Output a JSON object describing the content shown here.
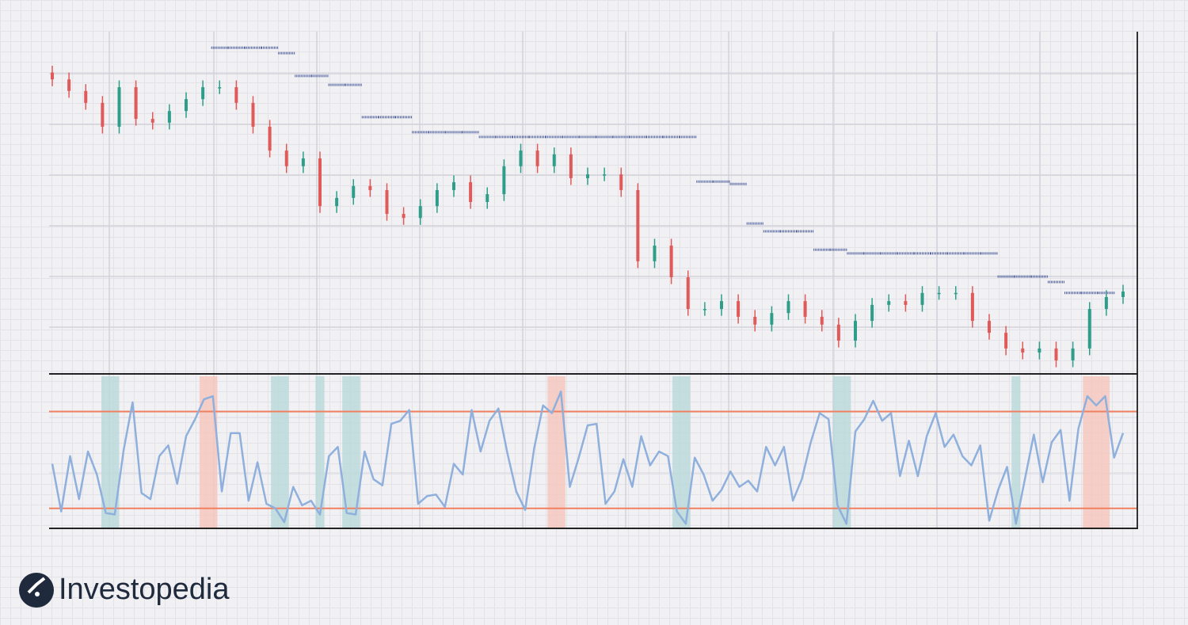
{
  "chart_data": [
    {
      "type": "candlestick",
      "up_color": "#2e9e8a",
      "down_color": "#e05a5a",
      "stop_color": "#4a5a9a",
      "ylim": [
        0,
        100
      ],
      "open": [
        88.0,
        86.0,
        82.6,
        79.1,
        72.1,
        83.7,
        74.4,
        73.3,
        76.7,
        80.2,
        83.7,
        83.7,
        79.1,
        72.1,
        65.1,
        60.5,
        62.8,
        48.8,
        51.2,
        54.7,
        53.5,
        46.5,
        45.3,
        48.8,
        53.5,
        55.8,
        50.0,
        52.3,
        60.5,
        65.1,
        60.5,
        64.0,
        57.0,
        58.1,
        58.1,
        53.5,
        32.6,
        37.2,
        27.9,
        18.6,
        18.6,
        20.9,
        16.3,
        14.0,
        17.4,
        20.9,
        16.3,
        14.0,
        9.3,
        15.1,
        19.8,
        20.9,
        19.8,
        23.3,
        23.3,
        23.3,
        15.1,
        11.6,
        7.0,
        5.8,
        7.0,
        3.5,
        7.0,
        18.6,
        22.1
      ],
      "high": [
        90.0,
        88.0,
        84.6,
        81.1,
        85.7,
        85.7,
        76.4,
        78.7,
        82.2,
        85.7,
        85.7,
        85.7,
        81.1,
        74.1,
        67.1,
        64.8,
        64.8,
        53.2,
        56.7,
        56.7,
        55.5,
        48.5,
        50.8,
        55.5,
        57.8,
        57.8,
        54.3,
        62.5,
        67.1,
        67.1,
        66.0,
        66.0,
        60.1,
        60.1,
        60.1,
        55.5,
        39.2,
        39.2,
        29.9,
        20.6,
        22.9,
        22.9,
        18.3,
        19.4,
        22.9,
        22.9,
        18.3,
        16.0,
        17.1,
        21.8,
        22.9,
        22.9,
        25.3,
        25.3,
        25.3,
        25.3,
        17.1,
        13.6,
        9.0,
        9.0,
        9.0,
        9.0,
        20.6,
        24.1,
        25.7
      ],
      "low": [
        84.0,
        80.6,
        77.1,
        70.1,
        70.1,
        72.4,
        71.3,
        71.3,
        74.7,
        78.2,
        81.7,
        77.1,
        70.1,
        63.1,
        58.5,
        58.5,
        46.8,
        46.8,
        49.2,
        51.5,
        44.5,
        43.3,
        43.3,
        46.8,
        51.5,
        48.0,
        48.0,
        50.3,
        58.5,
        58.5,
        58.5,
        55.0,
        55.0,
        56.1,
        51.5,
        30.6,
        30.6,
        25.9,
        16.6,
        16.6,
        16.6,
        14.3,
        12.0,
        12.0,
        15.4,
        14.3,
        12.0,
        7.3,
        7.3,
        13.1,
        17.8,
        17.8,
        17.8,
        21.3,
        21.3,
        13.1,
        9.6,
        5.0,
        3.8,
        3.8,
        1.5,
        1.5,
        5.0,
        16.6,
        20.1
      ],
      "close": [
        86.0,
        82.6,
        79.1,
        72.1,
        83.7,
        74.4,
        73.3,
        76.7,
        80.2,
        83.7,
        83.7,
        79.1,
        72.1,
        65.1,
        60.5,
        62.8,
        48.8,
        51.2,
        54.7,
        53.5,
        46.5,
        45.3,
        48.8,
        53.5,
        55.8,
        50.0,
        52.3,
        60.5,
        65.1,
        60.5,
        64.0,
        57.0,
        58.1,
        58.1,
        53.5,
        32.6,
        37.2,
        27.9,
        18.6,
        18.6,
        20.9,
        16.3,
        14.0,
        17.4,
        20.9,
        16.3,
        14.0,
        9.3,
        15.1,
        19.8,
        20.9,
        19.8,
        23.3,
        23.3,
        23.3,
        15.1,
        11.6,
        7.0,
        5.8,
        7.0,
        3.5,
        7.0,
        18.6,
        22.1,
        23.7
      ],
      "stop": [
        null,
        null,
        null,
        null,
        null,
        null,
        null,
        null,
        null,
        null,
        95.3,
        95.3,
        95.3,
        95.3,
        93.7,
        87.0,
        87.0,
        84.4,
        84.4,
        74.9,
        74.9,
        74.9,
        70.5,
        70.5,
        70.5,
        70.5,
        69.1,
        69.1,
        69.1,
        69.1,
        69.1,
        69.1,
        69.1,
        69.1,
        69.1,
        69.1,
        69.1,
        69.1,
        69.1,
        56.0,
        56.0,
        55.3,
        43.7,
        41.4,
        41.4,
        41.4,
        36.0,
        36.0,
        34.9,
        34.9,
        34.9,
        34.9,
        34.9,
        34.9,
        34.9,
        34.9,
        34.9,
        28.1,
        28.1,
        28.1,
        26.5,
        23.3,
        23.3,
        23.3,
        null
      ]
    },
    {
      "type": "oscillator",
      "color": "#8fb0dc",
      "level_color": "#f08060",
      "oversold_color": "#b9d9da",
      "overbought_color": "#f6c6bb",
      "ylim": [
        0,
        100
      ],
      "levels": [
        76,
        13
      ],
      "values": [
        42,
        11,
        47,
        19,
        50,
        35,
        10,
        9,
        51,
        82,
        23,
        19,
        47,
        54,
        29,
        60,
        71,
        84,
        86,
        24,
        62,
        62,
        18,
        43,
        16,
        13,
        4,
        27,
        15,
        18,
        9,
        47,
        53,
        10,
        9,
        50,
        32,
        28,
        68,
        70,
        77,
        16,
        21,
        22,
        14,
        42,
        35,
        77,
        50,
        70,
        78,
        49,
        24,
        12,
        52,
        80,
        75,
        89,
        27,
        46,
        67,
        68,
        16,
        24,
        45,
        27,
        60,
        41,
        50,
        47,
        11,
        3,
        46,
        35,
        18,
        25,
        37,
        27,
        31,
        24,
        53,
        41,
        53,
        18,
        32,
        56,
        75,
        71,
        15,
        3,
        63,
        71,
        83,
        70,
        75,
        34,
        57,
        34,
        60,
        75,
        53,
        61,
        47,
        41,
        54,
        5,
        25,
        40,
        3,
        32,
        61,
        30,
        56,
        64,
        18,
        65,
        86,
        80,
        86,
        46,
        62
      ],
      "oversold_spans": [
        [
          6,
          7
        ],
        [
          25,
          26
        ],
        [
          30,
          30
        ],
        [
          33,
          34
        ],
        [
          70,
          71
        ],
        [
          88,
          89
        ],
        [
          108,
          108
        ]
      ],
      "overbought_spans": [
        [
          17,
          18
        ],
        [
          56,
          57
        ],
        [
          116,
          118
        ]
      ]
    }
  ],
  "logo": "Investopedia"
}
